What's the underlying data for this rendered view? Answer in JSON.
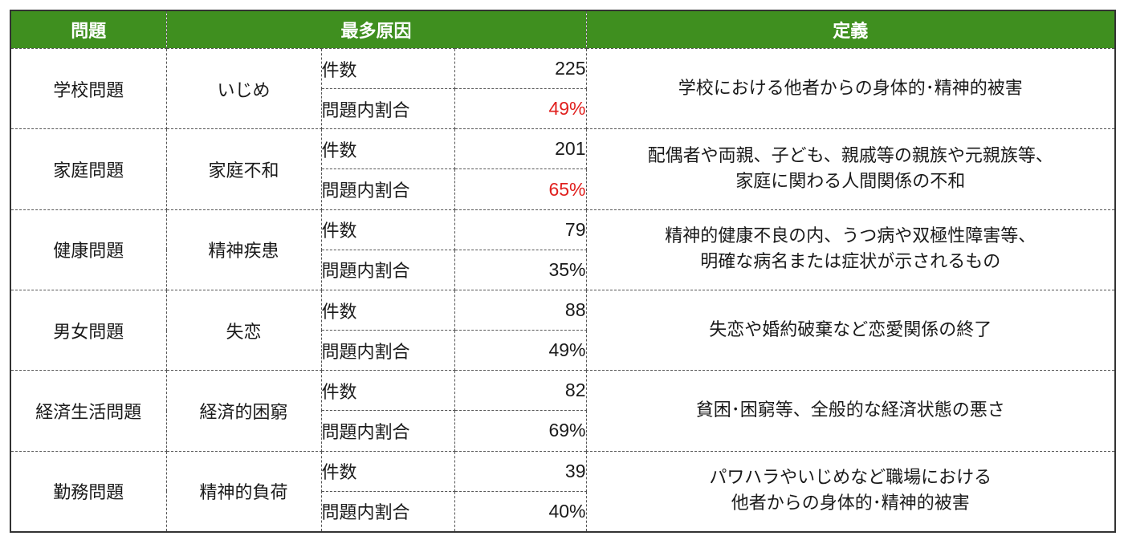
{
  "headers": {
    "problem": "問題",
    "cause": "最多原因",
    "definition": "定義"
  },
  "labels": {
    "count": "件数",
    "share": "問題内割合"
  },
  "colors": {
    "header_bg": "#3f8f1f",
    "highlight": "#e0201e"
  },
  "rows": [
    {
      "problem": "学校問題",
      "cause": "いじめ",
      "count": "225",
      "share": "49%",
      "share_highlight": true,
      "definition": [
        "学校における他者からの身体的･精神的被害"
      ]
    },
    {
      "problem": "家庭問題",
      "cause": "家庭不和",
      "count": "201",
      "share": "65%",
      "share_highlight": true,
      "definition": [
        "配偶者や両親、子ども、親戚等の親族や元親族等、",
        "家庭に関わる人間関係の不和"
      ]
    },
    {
      "problem": "健康問題",
      "cause": "精神疾患",
      "count": "79",
      "share": "35%",
      "share_highlight": false,
      "definition": [
        "精神的健康不良の内、うつ病や双極性障害等、",
        "明確な病名または症状が示されるもの"
      ]
    },
    {
      "problem": "男女問題",
      "cause": "失恋",
      "count": "88",
      "share": "49%",
      "share_highlight": false,
      "definition": [
        "失恋や婚約破棄など恋愛関係の終了"
      ]
    },
    {
      "problem": "経済生活問題",
      "cause": "経済的困窮",
      "count": "82",
      "share": "69%",
      "share_highlight": false,
      "definition": [
        "貧困･困窮等、全般的な経済状態の悪さ"
      ]
    },
    {
      "problem": "勤務問題",
      "cause": "精神的負荷",
      "count": "39",
      "share": "40%",
      "share_highlight": false,
      "definition": [
        "パワハラやいじめなど職場における",
        "他者からの身体的･精神的被害"
      ]
    }
  ]
}
